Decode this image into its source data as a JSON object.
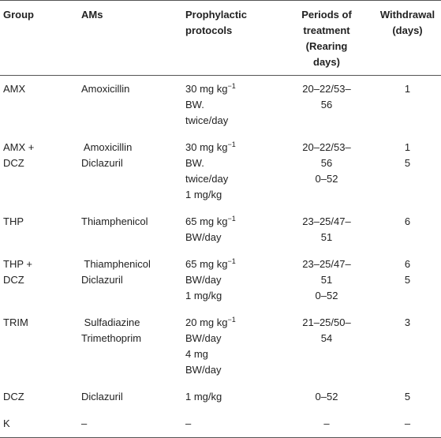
{
  "headers": {
    "group": "Group",
    "ams": "AMs",
    "protocols": [
      "Prophylactic",
      "protocols"
    ],
    "periods": [
      "Periods of",
      "treatment",
      "(Rearing",
      "days)"
    ],
    "withdrawal": [
      "Withdrawal",
      "(days)"
    ]
  },
  "rows": [
    {
      "group": [
        "AMX"
      ],
      "ams": [
        "Amoxicillin"
      ],
      "protocol": [
        {
          "t": "30 mg kg",
          "sup": "−1"
        },
        {
          "t": "BW."
        },
        {
          "t": "twice/day"
        }
      ],
      "period": [
        "20–22/53–",
        "56"
      ],
      "withdrawal": [
        "1"
      ]
    },
    {
      "group": [
        "AMX +",
        "DCZ"
      ],
      "ams": [
        " Amoxicillin",
        "Diclazuril"
      ],
      "protocol": [
        {
          "t": "30 mg kg",
          "sup": "−1"
        },
        {
          "t": "BW."
        },
        {
          "t": "twice/day"
        },
        {
          "t": "1 mg/kg"
        }
      ],
      "period": [
        "20–22/53–",
        "56",
        "0–52"
      ],
      "withdrawal": [
        "1",
        "5"
      ]
    },
    {
      "group": [
        "THP"
      ],
      "ams": [
        "Thiamphenicol"
      ],
      "protocol": [
        {
          "t": "65 mg kg",
          "sup": "−1"
        },
        {
          "t": "BW/day"
        }
      ],
      "period": [
        "23–25/47–",
        "51"
      ],
      "withdrawal": [
        "6"
      ]
    },
    {
      "group": [
        "THP +",
        "DCZ"
      ],
      "ams": [
        " Thiamphenicol",
        "Diclazuril"
      ],
      "protocol": [
        {
          "t": "65 mg kg",
          "sup": "−1"
        },
        {
          "t": "BW/day"
        },
        {
          "t": "1 mg/kg"
        }
      ],
      "period": [
        "23–25/47–",
        "51",
        "0–52"
      ],
      "withdrawal": [
        "6",
        "5"
      ]
    },
    {
      "group": [
        "TRIM"
      ],
      "ams": [
        " Sulfadiazine",
        "Trimethoprim"
      ],
      "protocol": [
        {
          "t": "20 mg kg",
          "sup": "−1"
        },
        {
          "t": "BW/day"
        },
        {
          "t": "4 mg"
        },
        {
          "t": "BW/day"
        }
      ],
      "period": [
        "21–25/50–",
        "54"
      ],
      "withdrawal": [
        "3"
      ]
    },
    {
      "group": [
        "DCZ"
      ],
      "ams": [
        "Diclazuril"
      ],
      "protocol": [
        {
          "t": "1 mg/kg"
        }
      ],
      "period": [
        "0–52"
      ],
      "withdrawal": [
        "5"
      ]
    },
    {
      "group": [
        "K"
      ],
      "ams": [
        "–"
      ],
      "protocol": [
        {
          "t": "–"
        }
      ],
      "period": [
        "–"
      ],
      "withdrawal": [
        "–"
      ]
    }
  ]
}
